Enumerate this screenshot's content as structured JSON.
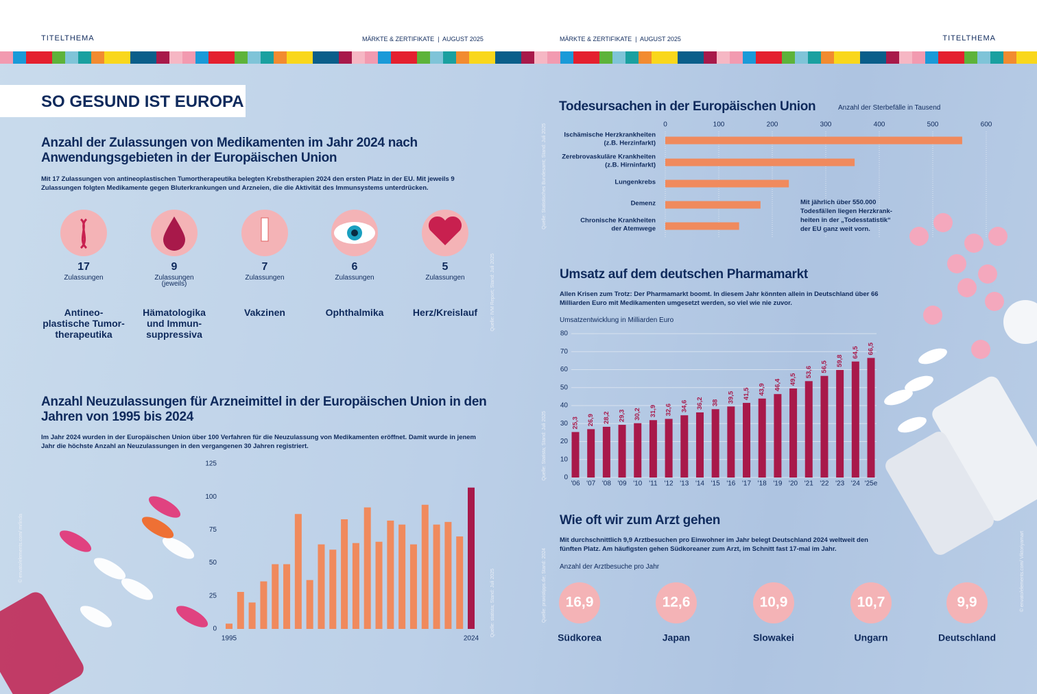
{
  "header": {
    "left_section": "TITELTHEMA",
    "left_issue": "MÄRKTE & ZERTIFIKATE  |  AUGUST 2025",
    "right_issue": "MÄRKTE & ZERTIFIKATE  |  AUGUST 2025",
    "right_section": "TITELTHEMA"
  },
  "banner": "SO GESUND IST EUROPA",
  "approvals": {
    "title": "Anzahl der Zulassungen von Medikamenten im Jahr 2024 nach Anwendungsgebieten in der Europäischen Union",
    "text": "Mit 17 Zulassungen von antineoplastischen Tumortherapeutika belegten Krebstherapien 2024 den ersten Platz in der EU. Mit jeweils 9 Zulassungen folgten Medikamente gegen Bluterkrankungen und Arzneien, die die Aktivität des Immunsystems unterdrücken.",
    "source": "Quelle: IVM Report; Stand: Juli 2025",
    "items": [
      {
        "count": 17,
        "unit": "Zulassungen",
        "area": "Antineo-\nplastische Tumor-\ntherapeutika"
      },
      {
        "count": 9,
        "unit": "Zulassungen\n(jeweils)",
        "area": "Hämatologika\nund Immun-\nsuppressiva"
      },
      {
        "count": 7,
        "unit": "Zulassungen",
        "area": "Vakzinen"
      },
      {
        "count": 6,
        "unit": "Zulassungen",
        "area": "Ophthalmika"
      },
      {
        "count": 5,
        "unit": "Zulassungen",
        "area": "Herz/Kreislauf"
      }
    ]
  },
  "photo_credits": {
    "left": "© envato/elements.com/ mrlinda",
    "right": "© envato/elements.com/ Viktoriyamart"
  },
  "chart_data": [
    {
      "type": "bar",
      "title": "Anzahl Neuzulassungen für Arzneimittel in der Europäischen Union in den Jahren von 1995 bis 2024",
      "text": "Im Jahr 2024 wurden in der Europäischen Union über 100 Verfahren für die Neuzulassung von Medikamenten eröffnet. Damit wurde in jenem Jahr die höchste Anzahl an Neuzulassungen in den vergangenen 30 Jahren registriert.",
      "source": "Quelle: statista; Stand: Juli 2025",
      "categories": [
        "1995",
        null,
        null,
        null,
        null,
        null,
        null,
        null,
        null,
        null,
        null,
        null,
        null,
        null,
        null,
        null,
        null,
        null,
        null,
        null,
        null,
        "2024"
      ],
      "values": [
        4,
        28,
        20,
        36,
        49,
        49,
        87,
        37,
        64,
        60,
        83,
        65,
        92,
        66,
        82,
        79,
        64,
        94,
        79,
        81,
        70,
        107
      ],
      "colors": [
        "#f08a5d",
        "#f08a5d",
        "#f08a5d",
        "#f08a5d",
        "#f08a5d",
        "#f08a5d",
        "#f08a5d",
        "#f08a5d",
        "#f08a5d",
        "#f08a5d",
        "#f08a5d",
        "#f08a5d",
        "#f08a5d",
        "#f08a5d",
        "#f08a5d",
        "#f08a5d",
        "#f08a5d",
        "#f08a5d",
        "#f08a5d",
        "#f08a5d",
        "#f08a5d",
        "#a8194a"
      ],
      "ylim": [
        0,
        125
      ],
      "yticks": [
        0,
        25,
        50,
        75,
        100,
        125
      ],
      "grid": false
    },
    {
      "type": "hbar",
      "title": "Todesursachen in der Europäischen Union",
      "x_label": "Anzahl der Sterbefälle in Tausend",
      "source": "Quelle: Statistisches Bundesamt; Stand: Juli 2025",
      "annotation": "Mit jährlich über 550.000\nTodesfällen liegen Herzkrank-\nheiten in der „Todesstatistik“\nder EU ganz weit vorn.",
      "categories": [
        [
          "Ischämische Herzkrankheiten",
          "(z.B. Herzinfarkt)"
        ],
        [
          "Zerebrovaskuläre Krankheiten",
          "(z.B. Hirninfarkt)"
        ],
        [
          "Lungenkrebs"
        ],
        [
          "Demenz"
        ],
        [
          "Chronische Krankheiten",
          "der Atemwege"
        ]
      ],
      "values": [
        555,
        354,
        231,
        178,
        138
      ],
      "color": "#f08a5d",
      "xlim": [
        0,
        600
      ],
      "xticks": [
        0,
        100,
        200,
        300,
        400,
        500,
        600
      ],
      "grid": true
    },
    {
      "type": "bar",
      "title": "Umsatz auf dem deutschen Pharmamarkt",
      "text": "Allen Krisen zum Trotz: Der Pharmamarkt boomt. In diesem Jahr könnten allein in Deutschland über 66 Milliarden Euro mit Medikamenten umgesetzt werden, so viel wie nie zuvor.",
      "y_label": "Umsatzentwicklung in Milliarden Euro",
      "source": "Quelle: Statista; Stand: Juli 2025",
      "categories": [
        "'06",
        "'07",
        "'08",
        "'09",
        "'10",
        "'11",
        "'12",
        "'13",
        "'14",
        "'15",
        "'16",
        "'17",
        "'18",
        "'19",
        "'20",
        "'21",
        "'22",
        "'23",
        "'24",
        "'25e"
      ],
      "values": [
        25.3,
        26.9,
        28.2,
        29.3,
        30.2,
        31.9,
        32.6,
        34.6,
        36.2,
        38,
        39.5,
        41.5,
        43.9,
        46.4,
        49.5,
        53.6,
        56.5,
        59.8,
        64.5,
        66.5
      ],
      "value_labels": [
        "25,3",
        "26,9",
        "28,2",
        "29,3",
        "30,2",
        "31,9",
        "32,6",
        "34,6",
        "36,2",
        "38",
        "39,5",
        "41,5",
        "43,9",
        "46,4",
        "49,5",
        "53,6",
        "56,5",
        "59,8",
        "64,5",
        "66,5"
      ],
      "color": "#a8194a",
      "ylim": [
        0,
        80
      ],
      "yticks": [
        0,
        10,
        20,
        30,
        40,
        50,
        60,
        70,
        80
      ],
      "grid": true
    },
    {
      "type": "circles",
      "title": "Wie oft wir zum Arzt gehen",
      "text": "Mit durchschnittlich 9,9 Arztbesuchen pro Einwohner im Jahr belegt Deutschland 2024 weltweit den fünften Platz. Am häufigsten gehen Südkoreaner zum Arzt, im Schnitt fast 17-mal im Jahr.",
      "y_label": "Anzahl der Arztbesuche pro Jahr",
      "source": "Quelle: praxistipps.de; Stand: 2024",
      "categories": [
        "Südkorea",
        "Japan",
        "Slowakei",
        "Ungarn",
        "Deutschland"
      ],
      "values": [
        16.9,
        12.6,
        10.9,
        10.7,
        9.9
      ],
      "value_labels": [
        "16,9",
        "12,6",
        "10,9",
        "10,7",
        "9,9"
      ],
      "color": "#f4b3b6"
    }
  ]
}
